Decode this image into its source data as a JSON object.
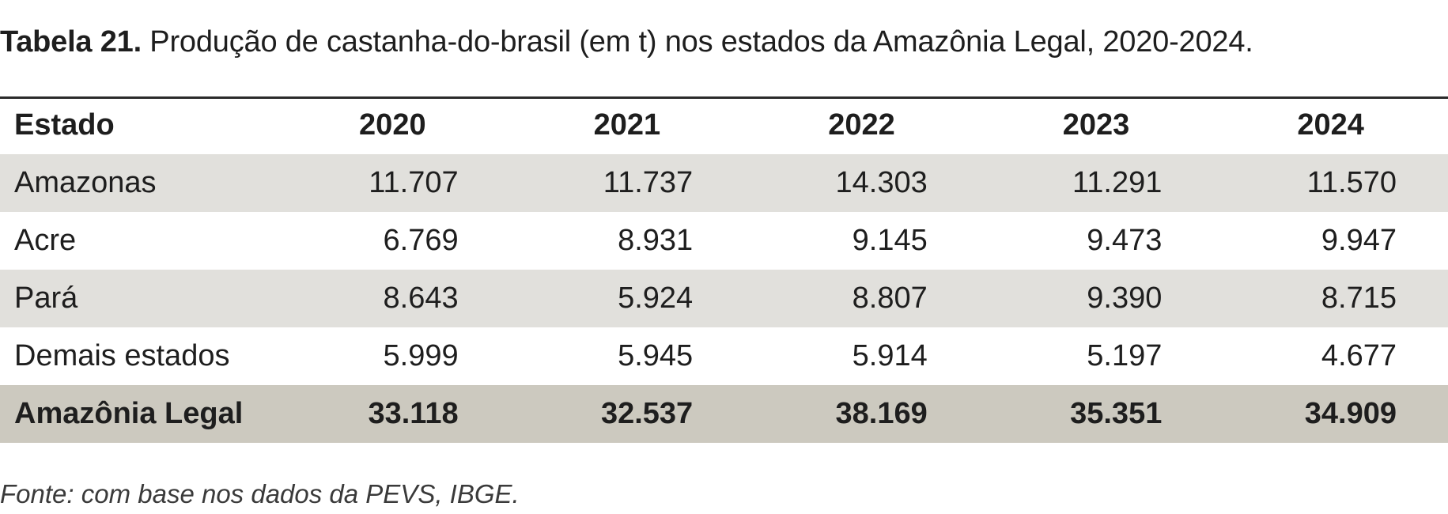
{
  "caption": {
    "label": "Tabela 21.",
    "text": " Produção de castanha-do-brasil (em t) nos estados da Amazônia Legal, 2020-2024."
  },
  "table": {
    "headers": [
      "Estado",
      "2020",
      "2021",
      "2022",
      "2023",
      "2024"
    ],
    "rows": [
      [
        "Amazonas",
        "11.707",
        "11.737",
        "14.303",
        "11.291",
        "11.570"
      ],
      [
        "Acre",
        "6.769",
        "8.931",
        "9.145",
        "9.473",
        "9.947"
      ],
      [
        "Pará",
        "8.643",
        "5.924",
        "8.807",
        "9.390",
        "8.715"
      ],
      [
        "Demais estados",
        "5.999",
        "5.945",
        "5.914",
        "5.197",
        "4.677"
      ]
    ],
    "total": [
      "Amazônia Legal",
      "33.118",
      "32.537",
      "38.169",
      "35.351",
      "34.909"
    ]
  },
  "source": "Fonte: com base nos dados da PEVS, IBGE.",
  "colors": {
    "shaded_row": "#e1e0dc",
    "total_row": "#ccc9bf",
    "rule": "#2b2b2b"
  }
}
